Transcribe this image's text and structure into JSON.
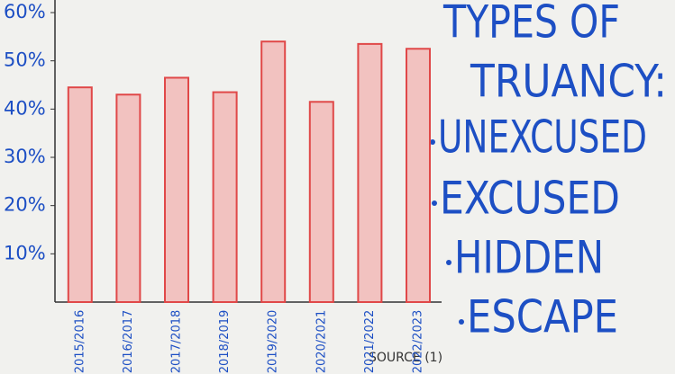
{
  "chart_data": {
    "type": "bar",
    "categories": [
      "2015/2016",
      "2016/2017",
      "2017/2018",
      "2018/2019",
      "2019/2020",
      "2020/2021",
      "2021/2022",
      "2022/2023"
    ],
    "values": [
      44.5,
      43,
      46.5,
      43.5,
      54,
      41.5,
      53.5,
      52.5
    ],
    "color": "#f2c2c0",
    "edge_color": "#e04848",
    "ylim": [
      0,
      60
    ],
    "yticks": [
      {
        "value": 10,
        "label": "10%"
      },
      {
        "value": 20,
        "label": "20%"
      },
      {
        "value": 30,
        "label": "30%"
      },
      {
        "value": 40,
        "label": "40%"
      },
      {
        "value": 50,
        "label": "50%"
      },
      {
        "value": 60,
        "label": "60%"
      }
    ],
    "grid": false,
    "source": "SOURCE (1)",
    "annotations": {
      "heading": [
        "TYPES OF",
        "TRUANCY:"
      ],
      "items": [
        "UNEXCUSED",
        "EXCUSED",
        "HIDDEN",
        "ESCAPE"
      ]
    }
  }
}
